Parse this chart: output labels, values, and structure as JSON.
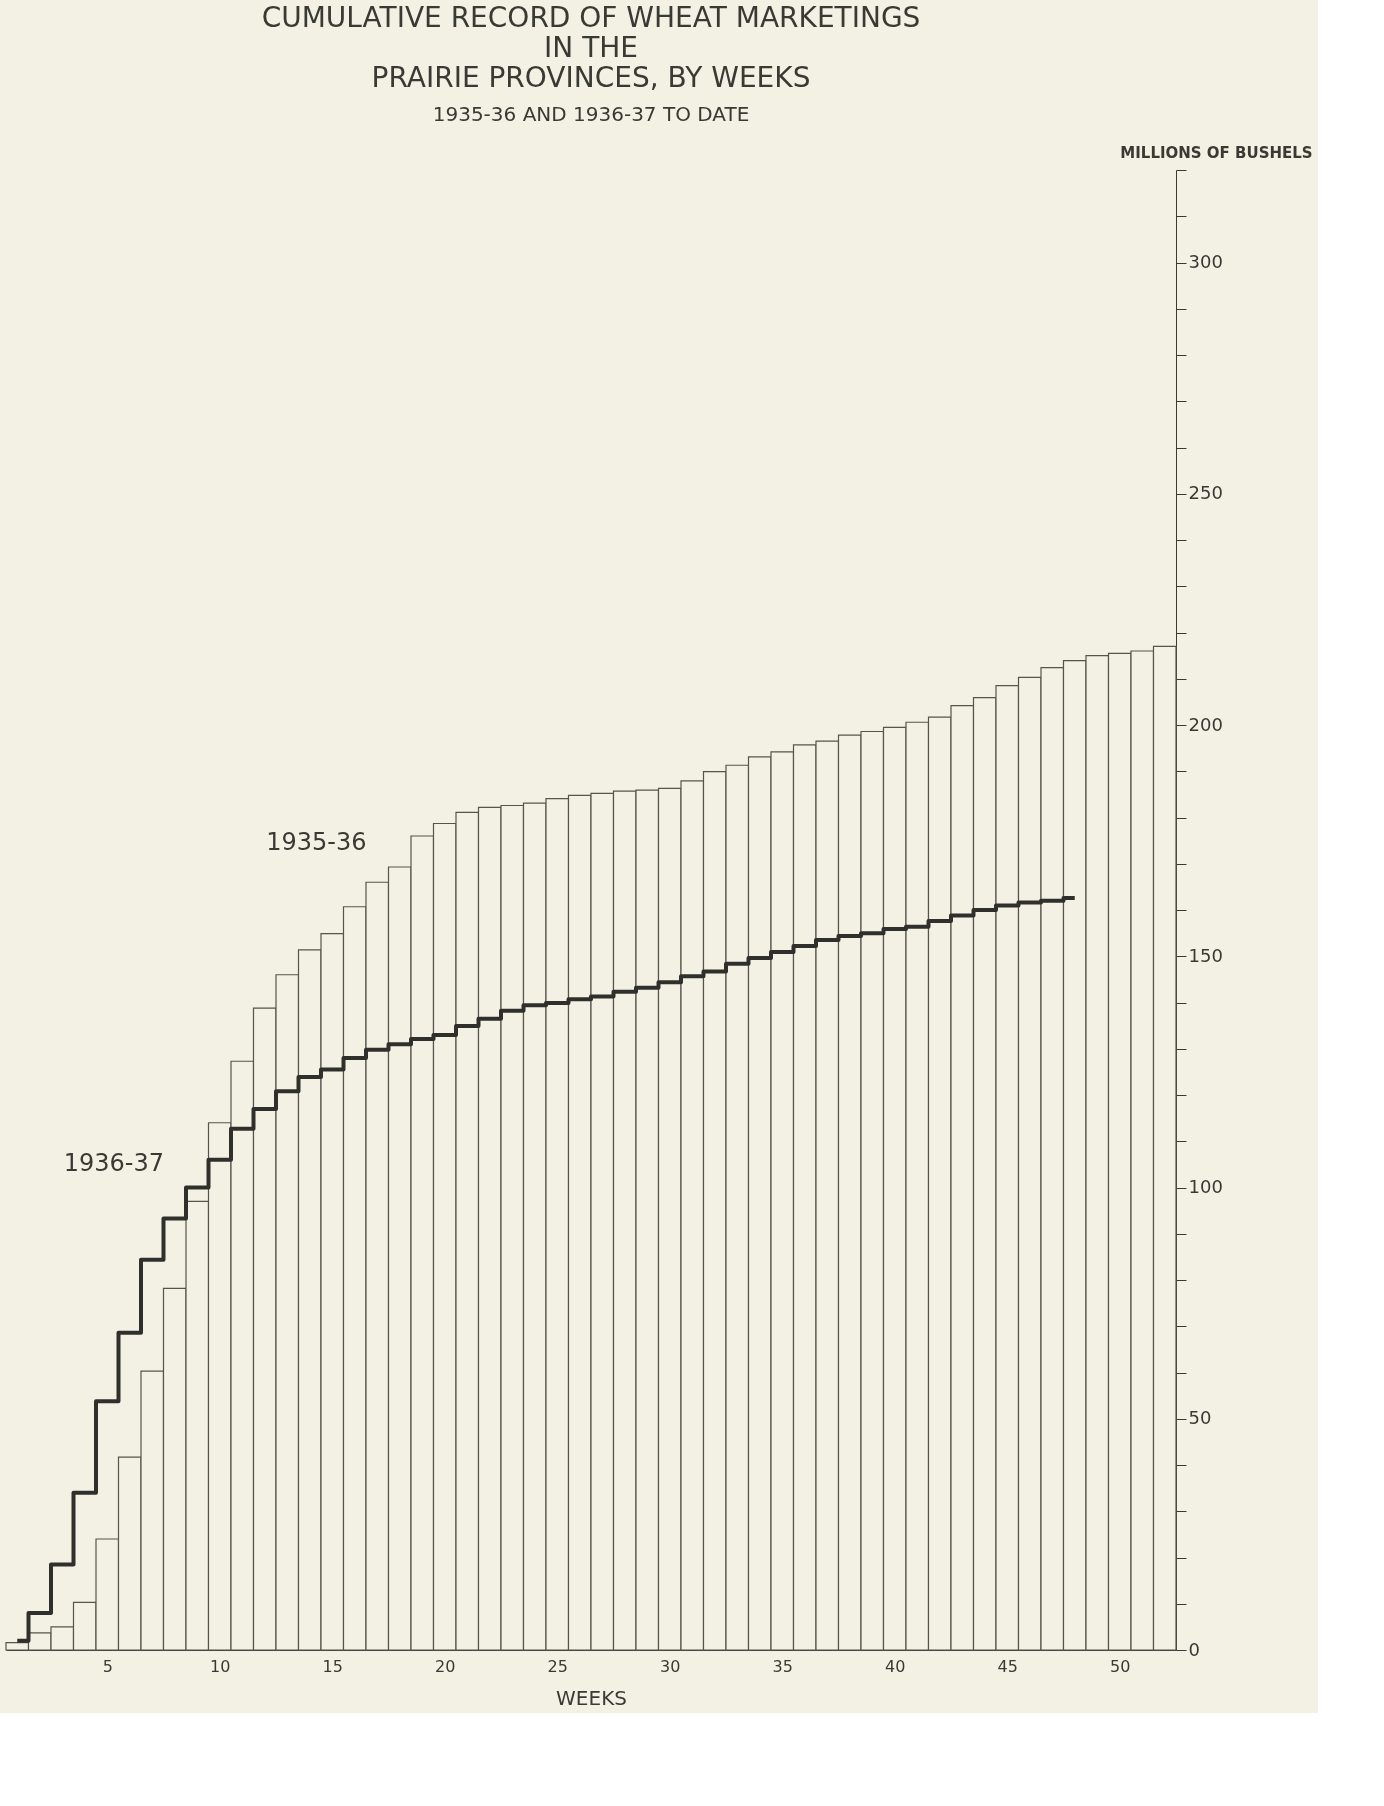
{
  "chart_data": {
    "type": "bar",
    "title": [
      "CUMULATIVE RECORD OF WHEAT MARKETINGS",
      "IN THE",
      "PRAIRIE PROVINCES, BY WEEKS"
    ],
    "subtitle": "1935-36 AND 1936-37 TO DATE",
    "xlabel": "WEEKS",
    "ylabel": "MILLIONS OF BUSHELS",
    "x": [
      1,
      2,
      3,
      4,
      5,
      6,
      7,
      8,
      9,
      10,
      11,
      12,
      13,
      14,
      15,
      16,
      17,
      18,
      19,
      20,
      21,
      22,
      23,
      24,
      25,
      26,
      27,
      28,
      29,
      30,
      31,
      32,
      33,
      34,
      35,
      36,
      37,
      38,
      39,
      40,
      41,
      42,
      43,
      44,
      45,
      46,
      47,
      48,
      49,
      50,
      51,
      52
    ],
    "series": [
      {
        "name": "1935-36",
        "color": "#55554d",
        "values": [
          1.6,
          3.7,
          5,
          10.3,
          24,
          41.7,
          60.3,
          78.2,
          97,
          114,
          127.3,
          138.8,
          146,
          151.4,
          154.9,
          160.7,
          166,
          169.3,
          176,
          178.7,
          181.1,
          182.2,
          182.6,
          183.1,
          184.1,
          184.8,
          185.2,
          185.7,
          185.9,
          186.3,
          187.9,
          189.9,
          191.3,
          193.1,
          194.2,
          195.7,
          196.5,
          197.8,
          198.6,
          199.5,
          200.6,
          201.7,
          204.2,
          205.9,
          208.5,
          210.3,
          212.4,
          213.9,
          215,
          215.5,
          216,
          217
        ]
      },
      {
        "name": "1936-37",
        "type": "step",
        "color": "#2f302b",
        "x": [
          1,
          2,
          3,
          4,
          5,
          6,
          7,
          8,
          9,
          10,
          11,
          12,
          13,
          14,
          15,
          16,
          17,
          18,
          19,
          20,
          21,
          22,
          23,
          24,
          25,
          26,
          27,
          28,
          29,
          30,
          31,
          32,
          33,
          34,
          35,
          36,
          37,
          38,
          39,
          40,
          41,
          42,
          43,
          44,
          45,
          46,
          47,
          48
        ],
        "values": [
          2,
          8,
          18.5,
          34,
          53.8,
          68.6,
          84.4,
          93.3,
          100,
          106,
          112.7,
          117,
          120.8,
          123.9,
          125.5,
          128,
          129.8,
          131,
          132.1,
          133,
          134.9,
          136.5,
          138.2,
          139.4,
          139.9,
          140.7,
          141.3,
          142.3,
          143.2,
          144.4,
          145.7,
          146.7,
          148.4,
          149.6,
          150.9,
          152.2,
          153.5,
          154.4,
          155,
          155.9,
          156.4,
          157.6,
          158.8,
          160,
          161,
          161.6,
          162,
          162.6
        ]
      }
    ],
    "xlim": [
      0.5,
      52.5
    ],
    "xticks": [
      5,
      10,
      15,
      20,
      25,
      30,
      35,
      40,
      45,
      50
    ],
    "ylim": [
      0,
      320
    ],
    "yticks": [
      0,
      {
        "value": 10,
        "label": null
      },
      {
        "value": 20,
        "label": null
      },
      {
        "value": 30,
        "label": null
      },
      {
        "value": 40,
        "label": null
      },
      50,
      {
        "value": 60,
        "label": null
      },
      {
        "value": 70,
        "label": null
      },
      {
        "value": 80,
        "label": null
      },
      {
        "value": 90,
        "label": null
      },
      100,
      {
        "value": 110,
        "label": null
      },
      {
        "value": 120,
        "label": null
      },
      {
        "value": 130,
        "label": null
      },
      {
        "value": 140,
        "label": null
      },
      150,
      {
        "value": 160,
        "label": null
      },
      {
        "value": 170,
        "label": null
      },
      {
        "value": 180,
        "label": null
      },
      {
        "value": 190,
        "label": null
      },
      200,
      {
        "value": 210,
        "label": null
      },
      {
        "value": 220,
        "label": null
      },
      {
        "value": 230,
        "label": null
      },
      {
        "value": 240,
        "label": null
      },
      250,
      {
        "value": 260,
        "label": null
      },
      {
        "value": 270,
        "label": null
      },
      {
        "value": 280,
        "label": null
      },
      {
        "value": 290,
        "label": null
      },
      300,
      {
        "value": 310,
        "label": null
      },
      {
        "value": 320,
        "label": null
      }
    ],
    "grid": false
  }
}
